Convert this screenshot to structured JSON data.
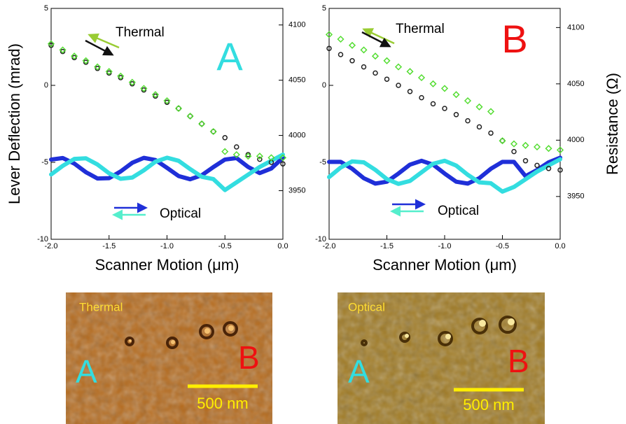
{
  "chart_data": [
    {
      "type": "scatter",
      "x_label": "Scanner Motion (μm)",
      "y_label": "Lever Deflection (mrad)",
      "xlim": [
        -2,
        0
      ],
      "xticks": [
        {
          "value": -2,
          "label": "-2.0"
        },
        {
          "value": -1.5,
          "label": "-1.5"
        },
        {
          "value": -1,
          "label": "-1.0"
        },
        {
          "value": -0.5,
          "label": "-0.5"
        },
        {
          "value": 0,
          "label": "0.0"
        }
      ],
      "ylim": [
        -10,
        5
      ],
      "yticks": [
        -10,
        -5,
        0,
        5
      ],
      "y2lim": [
        3906,
        4115
      ],
      "y2ticks": [
        3950,
        4000,
        4050,
        4100
      ],
      "x": [
        -2.0,
        -1.9,
        -1.8,
        -1.7,
        -1.6,
        -1.5,
        -1.4,
        -1.3,
        -1.2,
        -1.1,
        -1.0,
        -0.9,
        -0.8,
        -0.7,
        -0.6,
        -0.5,
        -0.4,
        -0.3,
        -0.2,
        -0.1,
        0.0
      ],
      "series": [
        {
          "color": "#1f2fd8",
          "values": [
            -4.82,
            -4.72,
            -5.08,
            -5.64,
            -6.05,
            -6.03,
            -5.59,
            -5.03,
            -4.71,
            -4.85,
            -5.36,
            -5.89,
            -6.1,
            -5.84,
            -5.31,
            -4.82,
            -4.72,
            -5.3,
            -5.7,
            -5.4,
            -4.7
          ]
        },
        {
          "color": "#33dde0",
          "values": [
            -5.79,
            -5.23,
            -4.78,
            -4.74,
            -5.14,
            -5.71,
            -6.07,
            -5.99,
            -5.52,
            -4.96,
            -4.7,
            -4.9,
            -5.44,
            -5.94,
            -6.09,
            -6.8,
            -6.3,
            -5.8,
            -5.3,
            -4.9,
            -4.5
          ]
        },
        {
          "color": "#222222",
          "marker": "circle",
          "values": [
            2.6,
            2.2,
            1.8,
            1.5,
            1.1,
            0.8,
            0.5,
            0.1,
            -0.3,
            -0.7,
            -1.1,
            -1.5,
            -2.0,
            -2.5,
            -3.0,
            -3.4,
            -4.0,
            -4.5,
            -4.8,
            -5.0,
            -5.1
          ]
        },
        {
          "color": "#55dd33",
          "marker": "diamond",
          "values": [
            2.7,
            2.3,
            1.9,
            1.6,
            1.2,
            0.9,
            0.6,
            0.2,
            -0.2,
            -0.6,
            -1.0,
            -1.5,
            -2.0,
            -2.5,
            -3.0,
            -4.3,
            -4.5,
            -4.6,
            -4.6,
            -4.7,
            -4.7
          ]
        }
      ],
      "annotations": [
        {
          "text": "Thermal",
          "arrows": [
            "#99cc33",
            "#111111"
          ]
        },
        {
          "text": "Optical",
          "arrows": [
            "#1f2fd8",
            "#55eecc"
          ]
        },
        {
          "text": "A",
          "color": "#33dde0"
        }
      ]
    },
    {
      "type": "scatter",
      "x_label": "Scanner Motion (μm)",
      "y2_label": "Resistance (Ω)",
      "xlim": [
        -2,
        0
      ],
      "xticks": [
        {
          "value": -2,
          "label": "-2.0"
        },
        {
          "value": -1.5,
          "label": "-1.5"
        },
        {
          "value": -1,
          "label": "-1.0"
        },
        {
          "value": -0.5,
          "label": "-0.5"
        },
        {
          "value": 0,
          "label": "0.0"
        }
      ],
      "ylim": [
        -10,
        5
      ],
      "yticks": [
        -10,
        -5,
        0,
        5
      ],
      "y2lim": [
        3912,
        4117
      ],
      "y2ticks": [
        3950,
        4000,
        4050,
        4100
      ],
      "x": [
        -2.0,
        -1.9,
        -1.8,
        -1.7,
        -1.6,
        -1.5,
        -1.4,
        -1.3,
        -1.2,
        -1.1,
        -1.0,
        -0.9,
        -0.8,
        -0.7,
        -0.6,
        -0.5,
        -0.4,
        -0.3,
        -0.2,
        -0.1,
        0.0
      ],
      "series": [
        {
          "color": "#1f2fd8",
          "values": [
            -4.97,
            -4.97,
            -5.42,
            -6.03,
            -6.38,
            -6.26,
            -5.73,
            -5.15,
            -4.9,
            -5.15,
            -5.73,
            -6.26,
            -6.38,
            -6.03,
            -5.42,
            -4.97,
            -4.97,
            -5.9,
            -5.5,
            -5.0,
            -4.7
          ]
        },
        {
          "color": "#33dde0",
          "values": [
            -5.96,
            -5.34,
            -4.94,
            -5.0,
            -5.49,
            -6.09,
            -6.4,
            -6.21,
            -5.65,
            -5.09,
            -4.9,
            -5.21,
            -5.81,
            -6.3,
            -6.36,
            -6.9,
            -6.6,
            -6.1,
            -5.6,
            -5.2,
            -4.8
          ]
        },
        {
          "color": "#222222",
          "marker": "circle",
          "values": [
            2.4,
            2.0,
            1.6,
            1.2,
            0.8,
            0.4,
            0.0,
            -0.4,
            -0.8,
            -1.2,
            -1.5,
            -1.9,
            -2.3,
            -2.7,
            -3.1,
            -3.6,
            -4.3,
            -4.9,
            -5.2,
            -5.4,
            -5.5
          ]
        },
        {
          "color": "#55dd33",
          "marker": "diamond",
          "values": [
            3.3,
            3.0,
            2.6,
            2.3,
            1.9,
            1.6,
            1.2,
            0.9,
            0.5,
            0.1,
            -0.2,
            -0.6,
            -1.0,
            -1.4,
            -1.7,
            -3.6,
            -3.8,
            -3.9,
            -4.0,
            -4.1,
            -4.2
          ]
        }
      ],
      "annotations": [
        {
          "text": "Thermal",
          "arrows": [
            "#99cc33",
            "#111111"
          ]
        },
        {
          "text": "Optical",
          "arrows": [
            "#1f2fd8",
            "#55eecc"
          ]
        },
        {
          "text": "B",
          "color": "#ee1111"
        }
      ]
    }
  ],
  "images": [
    {
      "title": "Thermal",
      "left": "A",
      "right": "B",
      "scale": "500 nm"
    },
    {
      "title": "Optical",
      "left": "A",
      "right": "B",
      "scale": "500 nm"
    }
  ]
}
